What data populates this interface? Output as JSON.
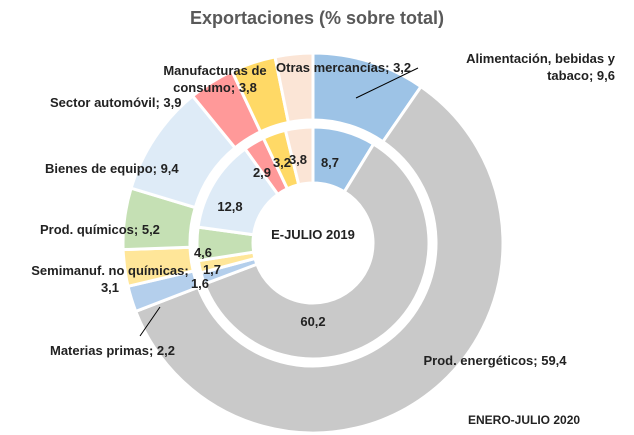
{
  "chart_data": {
    "type": "donut",
    "title": "Exportaciones (% sobre total)",
    "colors": [
      "#9dc3e6",
      "#c9c9c9",
      "#b4cfec",
      "#ffe699",
      "#c5e0b4",
      "#deebf7",
      "#ff9999",
      "#ffd966",
      "#fbe5d6"
    ],
    "series": [
      {
        "name": "ENERO-JULIO 2020",
        "values": [
          9.6,
          59.4,
          2.2,
          3.1,
          5.2,
          9.4,
          3.9,
          3.8,
          3.2
        ],
        "value_labels": [
          "Alimentación, bebidas y tabaco; 9,6",
          "Prod. energéticos; 59,4",
          "Materias primas; 2,2",
          "Semimanuf. no químicas; 3,1",
          "Prod. químicos; 5,2",
          "Bienes de equipo; 9,4",
          "Sector automóvil; 3,9",
          "Manufacturas de consumo; 3,8",
          "Otras mercancías; 3,2"
        ]
      },
      {
        "name": "E-JULIO 2019",
        "values": [
          8.7,
          60.2,
          1.6,
          1.7,
          4.6,
          12.8,
          2.9,
          3.2,
          3.8
        ],
        "value_labels": [
          "8,7",
          "60,2",
          "1,6",
          "1,7",
          "4,6",
          "12,8",
          "2,9",
          "3,2",
          "3,8"
        ]
      }
    ]
  }
}
